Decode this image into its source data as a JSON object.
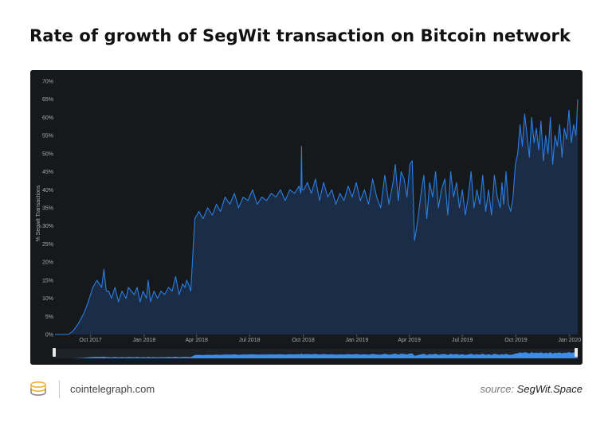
{
  "title": "Rate of growth of SegWit transaction on Bitcoin network",
  "footer": {
    "site": "cointelegraph.com",
    "source_prefix": "source:",
    "source_name": "SegWit.Space"
  },
  "colors": {
    "panel": "#16191c",
    "line": "#2a7ee2",
    "area": "#1b2c46",
    "navigator_fill": "#3d8ce6",
    "grid": "#2c3035",
    "tick_text": "#a8abb0"
  },
  "chart_data": {
    "type": "area",
    "title": "",
    "xlabel": "",
    "ylabel": "% Segwit Transactions",
    "ylim": [
      0,
      70
    ],
    "y_ticks": [
      "0%",
      "5%",
      "10%",
      "15%",
      "20%",
      "25%",
      "30%",
      "35%",
      "40%",
      "45%",
      "50%",
      "55%",
      "60%",
      "65%",
      "70%"
    ],
    "y_tick_values": [
      0,
      5,
      10,
      15,
      20,
      25,
      30,
      35,
      40,
      45,
      50,
      55,
      60,
      65,
      70
    ],
    "x_range": [
      "2017-08-01",
      "2020-01-15"
    ],
    "x_ticks": [
      {
        "date": "2017-10-01",
        "label": "Oct 2017"
      },
      {
        "date": "2018-01-01",
        "label": "Jan 2018"
      },
      {
        "date": "2018-04-01",
        "label": "Apr 2018"
      },
      {
        "date": "2018-07-01",
        "label": "Jul 2018"
      },
      {
        "date": "2018-10-01",
        "label": "Oct 2018"
      },
      {
        "date": "2019-01-01",
        "label": "Jan 2019"
      },
      {
        "date": "2019-04-01",
        "label": "Apr 2019"
      },
      {
        "date": "2019-07-01",
        "label": "Jul 2019"
      },
      {
        "date": "2019-10-01",
        "label": "Oct 2019"
      },
      {
        "date": "2020-01-01",
        "label": "Jan 2020"
      }
    ],
    "grid": false,
    "legend": "none",
    "navigator": true,
    "series": [
      {
        "x": [
          "2017-08-01",
          "2017-08-24",
          "2017-09-01",
          "2017-09-10",
          "2017-09-20",
          "2017-09-27",
          "2017-10-05",
          "2017-10-12",
          "2017-10-20",
          "2017-10-24",
          "2017-10-28",
          "2017-11-01",
          "2017-11-06",
          "2017-11-12",
          "2017-11-18",
          "2017-11-24",
          "2017-12-01",
          "2017-12-05",
          "2017-12-10",
          "2017-12-15",
          "2017-12-20",
          "2017-12-25",
          "2017-12-30",
          "2018-01-05",
          "2018-01-08",
          "2018-01-12",
          "2018-01-18",
          "2018-01-24",
          "2018-01-30",
          "2018-02-05",
          "2018-02-12",
          "2018-02-18",
          "2018-02-24",
          "2018-03-02",
          "2018-03-08",
          "2018-03-12",
          "2018-03-15",
          "2018-03-18",
          "2018-03-22",
          "2018-03-29",
          "2018-04-05",
          "2018-04-12",
          "2018-04-20",
          "2018-04-28",
          "2018-05-05",
          "2018-05-12",
          "2018-05-20",
          "2018-05-28",
          "2018-06-05",
          "2018-06-12",
          "2018-06-20",
          "2018-06-28",
          "2018-07-06",
          "2018-07-14",
          "2018-07-22",
          "2018-07-30",
          "2018-08-07",
          "2018-08-15",
          "2018-08-23",
          "2018-08-31",
          "2018-09-08",
          "2018-09-16",
          "2018-09-24",
          "2018-09-27",
          "2018-09-28",
          "2018-09-29",
          "2018-10-02",
          "2018-10-08",
          "2018-10-15",
          "2018-10-22",
          "2018-10-29",
          "2018-11-05",
          "2018-11-12",
          "2018-11-19",
          "2018-11-26",
          "2018-12-03",
          "2018-12-10",
          "2018-12-17",
          "2018-12-24",
          "2018-12-31",
          "2019-01-07",
          "2019-01-14",
          "2019-01-21",
          "2019-01-28",
          "2019-02-04",
          "2019-02-11",
          "2019-02-18",
          "2019-02-25",
          "2019-03-04",
          "2019-03-08",
          "2019-03-13",
          "2019-03-18",
          "2019-03-23",
          "2019-03-28",
          "2019-04-02",
          "2019-04-06",
          "2019-04-10",
          "2019-04-14",
          "2019-04-18",
          "2019-04-22",
          "2019-04-26",
          "2019-05-01",
          "2019-05-06",
          "2019-05-11",
          "2019-05-16",
          "2019-05-21",
          "2019-05-26",
          "2019-06-01",
          "2019-06-06",
          "2019-06-11",
          "2019-06-16",
          "2019-06-21",
          "2019-06-26",
          "2019-07-01",
          "2019-07-06",
          "2019-07-11",
          "2019-07-16",
          "2019-07-21",
          "2019-07-26",
          "2019-07-31",
          "2019-08-05",
          "2019-08-10",
          "2019-08-15",
          "2019-08-20",
          "2019-08-25",
          "2019-08-30",
          "2019-09-04",
          "2019-09-07",
          "2019-09-10",
          "2019-09-14",
          "2019-09-18",
          "2019-09-22",
          "2019-09-26",
          "2019-09-30",
          "2019-10-04",
          "2019-10-08",
          "2019-10-12",
          "2019-10-16",
          "2019-10-20",
          "2019-10-24",
          "2019-10-28",
          "2019-11-01",
          "2019-11-05",
          "2019-11-09",
          "2019-11-13",
          "2019-11-17",
          "2019-11-21",
          "2019-11-25",
          "2019-11-29",
          "2019-12-03",
          "2019-12-07",
          "2019-12-11",
          "2019-12-15",
          "2019-12-19",
          "2019-12-23",
          "2019-12-27",
          "2019-12-31",
          "2020-01-04",
          "2020-01-08",
          "2020-01-12",
          "2020-01-15"
        ],
        "y": [
          0,
          0,
          1,
          3,
          6,
          9,
          13,
          15,
          13,
          18,
          12,
          12,
          10,
          13,
          9,
          12,
          10,
          13,
          12,
          11,
          13,
          9,
          12,
          10,
          15,
          9,
          12,
          10,
          12,
          11,
          13,
          12,
          16,
          11,
          14,
          13,
          15,
          14,
          12,
          32,
          34,
          32,
          35,
          33,
          36,
          34,
          38,
          36,
          39,
          35,
          38,
          37,
          40,
          36,
          38,
          37,
          39,
          38,
          40,
          37,
          40,
          39,
          41,
          39,
          52,
          40,
          40,
          42,
          39,
          43,
          37,
          42,
          38,
          40,
          36,
          39,
          37,
          41,
          38,
          42,
          37,
          40,
          36,
          43,
          38,
          35,
          44,
          36,
          42,
          47,
          37,
          45,
          43,
          38,
          47,
          48,
          26,
          30,
          35,
          40,
          44,
          32,
          42,
          38,
          45,
          35,
          40,
          43,
          33,
          45,
          38,
          42,
          35,
          40,
          33,
          38,
          45,
          35,
          40,
          36,
          44,
          34,
          40,
          33,
          44,
          38,
          35,
          42,
          36,
          45,
          36,
          34,
          38,
          47,
          50,
          58,
          52,
          61,
          55,
          49,
          60,
          53,
          57,
          51,
          59,
          48,
          55,
          50,
          60,
          47,
          55,
          52,
          58,
          49,
          57,
          54,
          62,
          53,
          58,
          55,
          65
        ]
      }
    ]
  }
}
